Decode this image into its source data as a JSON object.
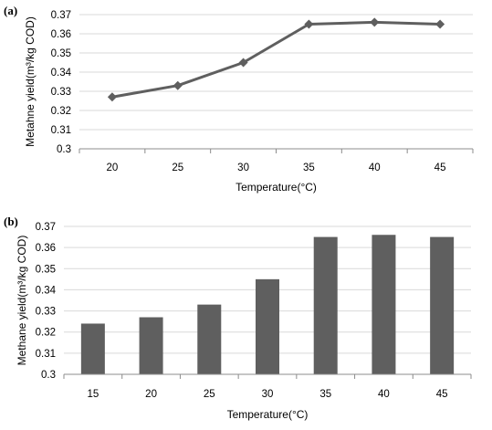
{
  "chart_data": [
    {
      "type": "line",
      "panel_label": "(a)",
      "x": [
        "20",
        "25",
        "30",
        "35",
        "40",
        "45"
      ],
      "values": [
        0.327,
        0.333,
        0.345,
        0.365,
        0.366,
        0.365
      ],
      "ylabel": "Metahne yield(m³/kg COD)",
      "xlabel": "Temperature(°C)",
      "ylim": [
        0.3,
        0.37
      ],
      "yticks": [
        "0.3",
        "0.31",
        "0.32",
        "0.33",
        "0.34",
        "0.35",
        "0.36",
        "0.37"
      ],
      "grid": true,
      "marker": "diamond",
      "color": "#5f5f5f"
    },
    {
      "type": "bar",
      "panel_label": "(b)",
      "categories": [
        "15",
        "20",
        "25",
        "30",
        "35",
        "40",
        "45"
      ],
      "values": [
        0.324,
        0.327,
        0.333,
        0.345,
        0.365,
        0.366,
        0.365
      ],
      "ylabel": "Methane yield(m³/kg COD)",
      "xlabel": "Temperature(°C)",
      "ylim": [
        0.3,
        0.37
      ],
      "yticks": [
        "0.3",
        "0.31",
        "0.32",
        "0.33",
        "0.34",
        "0.35",
        "0.36",
        "0.37"
      ],
      "grid": true,
      "color": "#5f5f5f"
    }
  ]
}
